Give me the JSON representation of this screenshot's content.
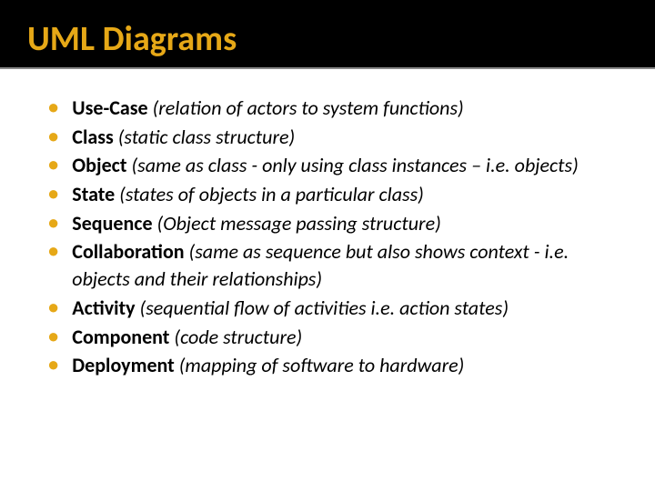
{
  "title": "UML Diagrams",
  "colors": {
    "accent": "#e6a817",
    "header_bg": "#000000",
    "body_bg": "#ffffff",
    "text": "#000000",
    "divider": "#888888"
  },
  "typography": {
    "title_fontsize": 38,
    "title_weight": "bold",
    "item_fontsize": 22,
    "term_weight": "bold",
    "desc_style": "italic"
  },
  "bullet_glyph": "●",
  "items": [
    {
      "term": "Use-Case",
      "desc": " (relation of actors to system functions)"
    },
    {
      "term": "Class",
      "desc": " (static class structure)"
    },
    {
      "term": "Object",
      "desc": " (same as class - only using class instances – i.e. objects)"
    },
    {
      "term": "State",
      "desc": " (states of objects in a particular class)"
    },
    {
      "term": "Sequence",
      "desc": " (Object message passing structure)"
    },
    {
      "term": "Collaboration",
      "desc": " (same as sequence but also shows context - i.e. objects and their relationships)"
    },
    {
      "term": "Activity",
      "desc": " (sequential flow of activities i.e. action states)"
    },
    {
      "term": "Component",
      "desc": " (code structure)"
    },
    {
      "term": "Deployment",
      "desc": " (mapping of software to hardware)"
    }
  ]
}
